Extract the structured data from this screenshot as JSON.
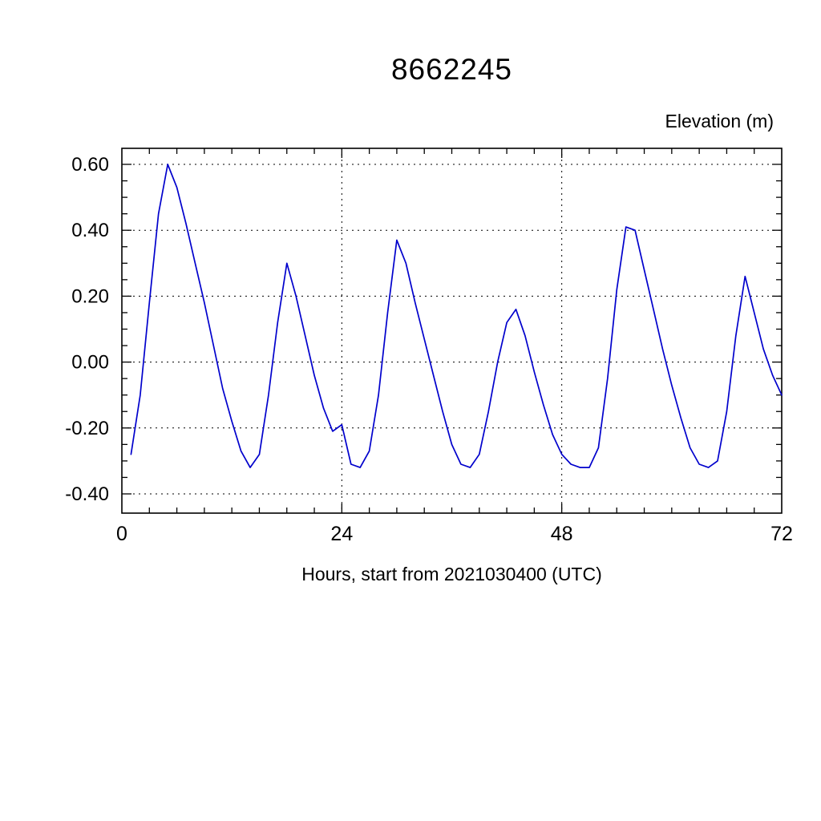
{
  "page": {
    "background": "#ffffff"
  },
  "chart": {
    "title": "8662245",
    "ylabel_top": "Elevation (m)",
    "xlabel": "Hours, start from 2021030400 (UTC)"
  },
  "chart_data": {
    "type": "line",
    "title": "8662245",
    "xlabel": "Hours, start from 2021030400 (UTC)",
    "ylabel": "Elevation (m)",
    "legend": [],
    "grid": true,
    "xlim": [
      0,
      72
    ],
    "ylim": [
      -0.4,
      0.6
    ],
    "x_ticks": [
      0,
      24,
      48,
      72
    ],
    "x_tick_labels": [
      "0",
      "24",
      "48",
      "72"
    ],
    "y_ticks": [
      -0.4,
      -0.2,
      0.0,
      0.2,
      0.4,
      0.6
    ],
    "y_tick_labels": [
      "-0.40",
      "-0.20",
      "0.00",
      "0.20",
      "0.40",
      "0.60"
    ],
    "x_minor_step": 3,
    "y_minor_step": 0.05,
    "line_color": "#0000cc",
    "axis_color": "#000000",
    "grid_color": "#000000",
    "x": [
      1,
      2,
      3,
      4,
      5,
      6,
      7,
      8,
      9,
      10,
      11,
      12,
      13,
      14,
      15,
      16,
      17,
      18,
      19,
      20,
      21,
      22,
      23,
      24,
      25,
      26,
      27,
      28,
      29,
      30,
      31,
      32,
      33,
      34,
      35,
      36,
      37,
      38,
      39,
      40,
      41,
      42,
      43,
      44,
      45,
      46,
      47,
      48,
      49,
      50,
      51,
      52,
      53,
      54,
      55,
      56,
      57,
      58,
      59,
      60,
      61,
      62,
      63,
      64,
      65,
      66,
      67,
      68,
      69,
      70,
      71,
      72
    ],
    "y": [
      -0.28,
      -0.1,
      0.18,
      0.45,
      0.6,
      0.53,
      0.42,
      0.3,
      0.18,
      0.05,
      -0.08,
      -0.18,
      -0.27,
      -0.32,
      -0.28,
      -0.1,
      0.12,
      0.3,
      0.2,
      0.08,
      -0.04,
      -0.14,
      -0.21,
      -0.19,
      -0.31,
      -0.32,
      -0.27,
      -0.1,
      0.15,
      0.37,
      0.3,
      0.18,
      0.07,
      -0.04,
      -0.15,
      -0.25,
      -0.31,
      -0.32,
      -0.28,
      -0.15,
      0.0,
      0.12,
      0.16,
      0.08,
      -0.03,
      -0.13,
      -0.22,
      -0.28,
      -0.31,
      -0.32,
      -0.32,
      -0.26,
      -0.05,
      0.22,
      0.41,
      0.4,
      0.28,
      0.16,
      0.04,
      -0.07,
      -0.17,
      -0.26,
      -0.31,
      -0.32,
      -0.3,
      -0.15,
      0.08,
      0.26,
      0.15,
      0.04,
      -0.04,
      -0.1
    ]
  }
}
